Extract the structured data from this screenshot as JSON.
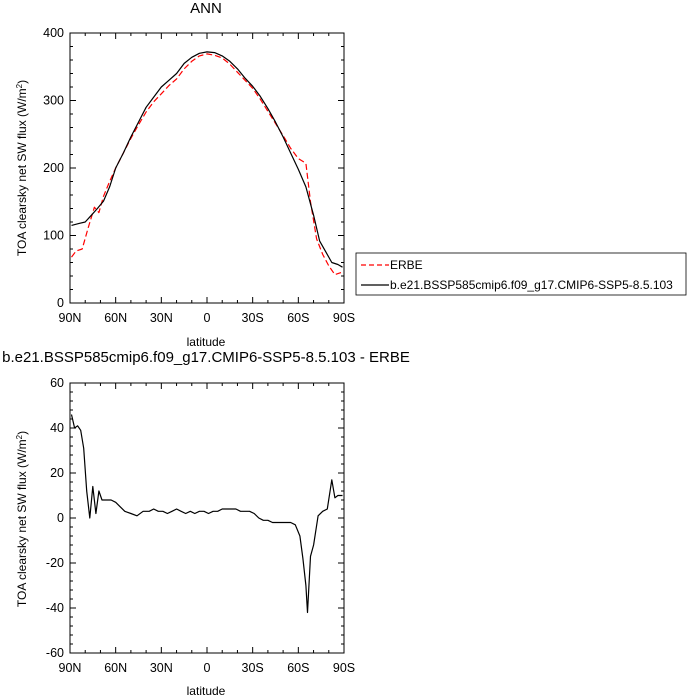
{
  "chart_data": [
    {
      "type": "line",
      "title": "ANN",
      "xlabel": "latitude",
      "ylabel_main": "TOA clearsky net SW flux (W/m",
      "ylabel_sup": "2",
      "ylabel_close": ")",
      "xlim": [
        90,
        -90
      ],
      "ylim": [
        0,
        400
      ],
      "x_ticks": [
        90,
        60,
        30,
        0,
        -30,
        -60,
        -90
      ],
      "x_tick_labels": [
        "90N",
        "60N",
        "30N",
        "0",
        "30S",
        "60S",
        "90S"
      ],
      "y_ticks": [
        0,
        100,
        200,
        300,
        400
      ],
      "y_tick_labels": [
        "0",
        "100",
        "200",
        "300",
        "400"
      ],
      "legend_position": "right",
      "series": [
        {
          "name": "ERBE",
          "color": "#ff0000",
          "dash": "dashed",
          "x": [
            89,
            86,
            82,
            78,
            74,
            71,
            68,
            64,
            60,
            55,
            50,
            45,
            40,
            35,
            30,
            25,
            20,
            15,
            10,
            5,
            0,
            -5,
            -10,
            -15,
            -20,
            -25,
            -30,
            -35,
            -40,
            -45,
            -50,
            -55,
            -60,
            -65,
            -68,
            -72,
            -76,
            -80,
            -84,
            -88
          ],
          "y": [
            68,
            77,
            80,
            112,
            142,
            134,
            158,
            180,
            200,
            222,
            244,
            264,
            283,
            298,
            310,
            322,
            332,
            347,
            358,
            366,
            369,
            367,
            363,
            354,
            342,
            330,
            318,
            302,
            284,
            266,
            248,
            229,
            214,
            207,
            150,
            95,
            72,
            55,
            42,
            45
          ]
        },
        {
          "name": "b.e21.BSSP585cmip6.f09_g17.CMIP6-SSP5-8.5.103",
          "color": "#000000",
          "dash": "solid",
          "x": [
            89,
            84,
            80,
            76,
            72,
            68,
            64,
            60,
            55,
            50,
            45,
            40,
            35,
            30,
            25,
            20,
            15,
            10,
            5,
            0,
            -5,
            -10,
            -15,
            -20,
            -25,
            -30,
            -35,
            -40,
            -45,
            -50,
            -55,
            -60,
            -65,
            -70,
            -74,
            -78,
            -82,
            -86,
            -89
          ],
          "y": [
            115,
            118,
            120,
            130,
            140,
            151,
            172,
            200,
            222,
            246,
            268,
            290,
            305,
            320,
            330,
            340,
            355,
            364,
            370,
            372,
            371,
            366,
            358,
            347,
            333,
            321,
            306,
            288,
            268,
            246,
            222,
            198,
            172,
            130,
            92,
            76,
            60,
            57,
            53
          ]
        }
      ]
    },
    {
      "type": "line",
      "title": "b.e21.BSSP585cmip6.f09_g17.CMIP6-SSP5-8.5.103 - ERBE",
      "xlabel": "latitude",
      "ylabel_main": "TOA clearsky net SW flux (W/m",
      "ylabel_sup": "2",
      "ylabel_close": ")",
      "xlim": [
        90,
        -90
      ],
      "ylim": [
        -60,
        60
      ],
      "x_ticks": [
        90,
        60,
        30,
        0,
        -30,
        -60,
        -90
      ],
      "x_tick_labels": [
        "90N",
        "60N",
        "30N",
        "0",
        "30S",
        "60S",
        "90S"
      ],
      "y_ticks": [
        -60,
        -40,
        -20,
        0,
        20,
        40,
        60
      ],
      "y_tick_labels": [
        "-60",
        "-40",
        "-20",
        "0",
        "20",
        "40",
        "60"
      ],
      "series": [
        {
          "color": "#000000",
          "dash": "solid",
          "x": [
            89,
            87,
            85,
            83,
            81,
            79,
            77,
            75,
            73,
            71,
            69,
            67,
            65,
            63,
            60,
            57,
            54,
            50,
            46,
            42,
            38,
            35,
            32,
            29,
            26,
            23,
            20,
            17,
            14,
            11,
            8,
            5,
            2,
            -1,
            -4,
            -7,
            -10,
            -13,
            -16,
            -19,
            -22,
            -25,
            -28,
            -31,
            -34,
            -37,
            -40,
            -43,
            -46,
            -49,
            -52,
            -55,
            -58,
            -61,
            -63,
            -65,
            -66,
            -68,
            -70,
            -73,
            -76,
            -79,
            -82,
            -84,
            -86,
            -89
          ],
          "y": [
            46,
            40,
            41,
            39,
            31,
            12,
            0,
            14,
            2,
            12,
            8,
            8,
            8,
            8,
            7,
            5,
            3,
            2,
            1,
            3,
            3,
            4,
            3,
            3,
            2,
            3,
            4,
            3,
            2,
            3,
            2,
            3,
            3,
            2,
            3,
            3,
            4,
            4,
            4,
            4,
            3,
            3,
            3,
            2,
            0,
            -1,
            -1,
            -2,
            -2,
            -2,
            -2,
            -2,
            -3,
            -8,
            -18,
            -30,
            -42,
            -17,
            -12,
            1,
            3,
            4,
            17,
            9,
            10,
            10
          ]
        }
      ]
    }
  ]
}
